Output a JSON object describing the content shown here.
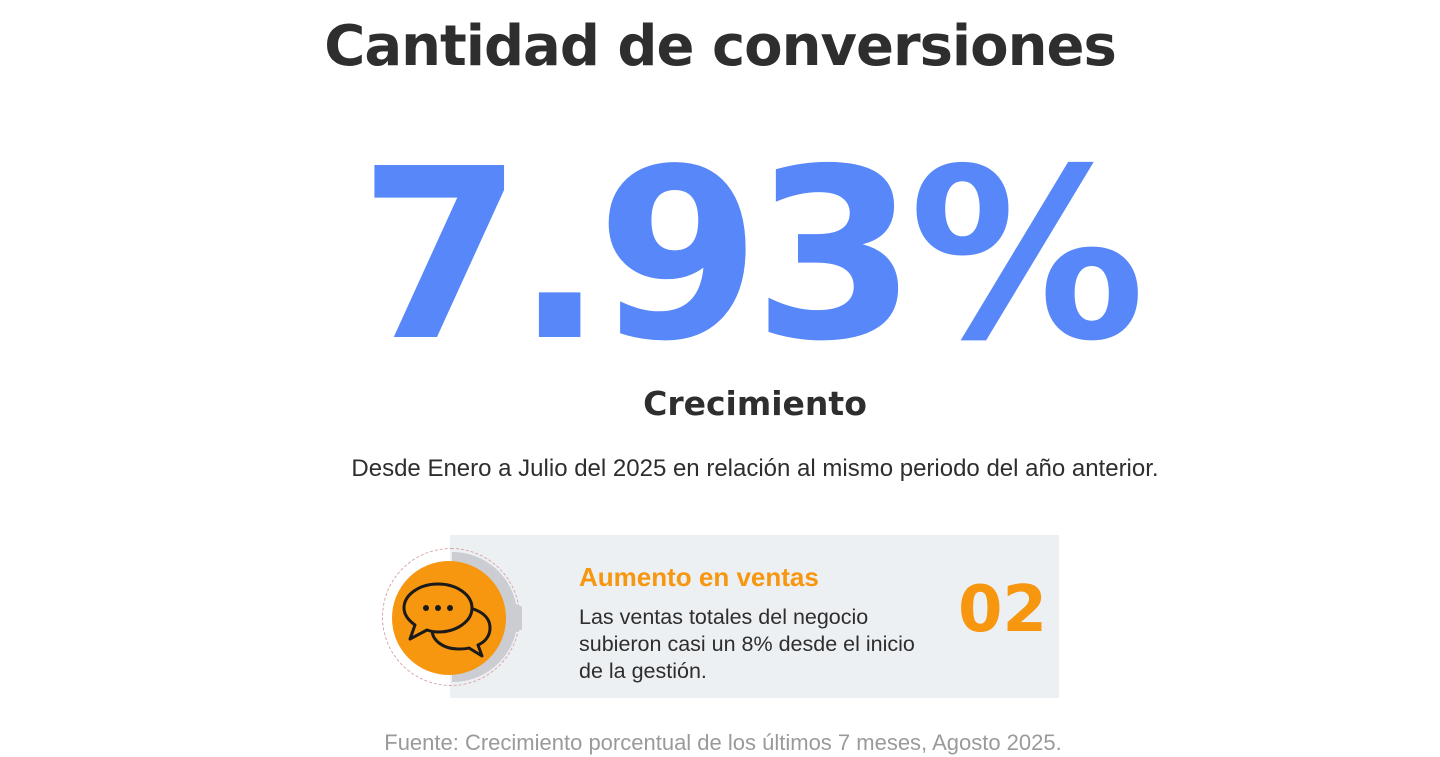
{
  "title": "Cantidad de conversiones",
  "metric": {
    "value": "7.93%",
    "label": "Crecimiento",
    "description": "Desde Enero a Julio del 2025 en relación al mismo periodo del año anterior."
  },
  "card": {
    "icon": "chat-bubbles-icon",
    "title": "Aumento en ventas",
    "text": "Las ventas totales del negocio subieron casi un 8%  desde el inicio de la gestión.",
    "number": "02"
  },
  "source": "Fuente: Crecimiento porcentual de los últimos 7 meses, Agosto 2025.",
  "colors": {
    "accent_blue": "#5787f8",
    "accent_orange": "#f7960f",
    "text_dark": "#2e2e2e",
    "card_bg": "#edf0f3",
    "source_gray": "#9a9a9a"
  }
}
